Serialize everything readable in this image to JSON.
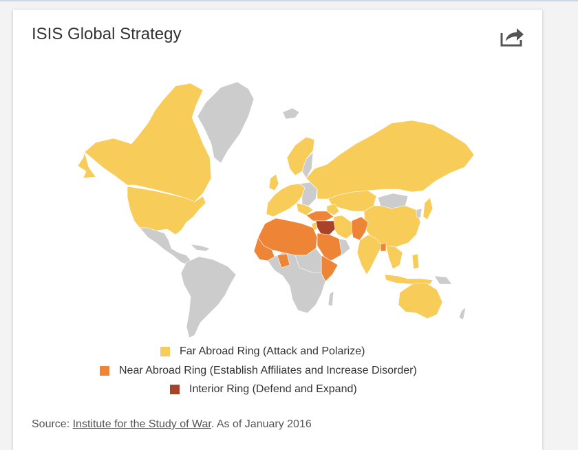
{
  "widget": {
    "title": "ISIS Global Strategy",
    "share_icon": "share-arrow-icon"
  },
  "legend": {
    "items": [
      {
        "label": "Far Abroad Ring (Attack and Polarize)",
        "color": "#f7cc59"
      },
      {
        "label": "Near Abroad Ring (Establish Affiliates and Increase Disorder)",
        "color": "#ee8435"
      },
      {
        "label": "Interior Ring (Defend and Expand)",
        "color": "#a8432a"
      }
    ]
  },
  "map": {
    "colors": {
      "far": "#f7cc59",
      "near": "#ee8435",
      "interior": "#a8432a",
      "none": "#cccccc",
      "border": "#ffffff"
    }
  },
  "source": {
    "prefix": "Source: ",
    "link_text": "Institute for the Study of War",
    "suffix": ". As of January 2016"
  }
}
